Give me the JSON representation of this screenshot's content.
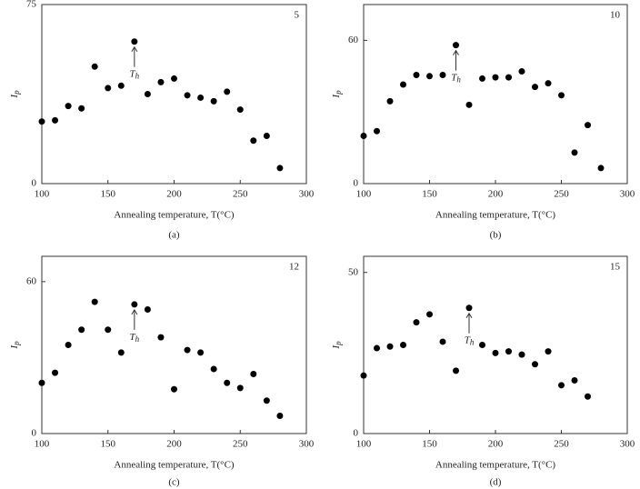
{
  "chart_data": [
    {
      "type": "scatter",
      "label": "5",
      "caption": "(a)",
      "xlabel": "Annealing temperature, T(°C)",
      "ylabel": {
        "main": "I",
        "sub": "p"
      },
      "annotation": {
        "main": "T",
        "sub": "h",
        "x": 170
      },
      "xlim": [
        100,
        300
      ],
      "xticks": [
        100,
        150,
        200,
        250,
        300
      ],
      "ylim": [
        0,
        75
      ],
      "yticks": [
        0,
        75
      ],
      "color": "#000000",
      "x": [
        100,
        110,
        120,
        130,
        140,
        150,
        160,
        170,
        180,
        190,
        200,
        210,
        220,
        230,
        240,
        250,
        260,
        270,
        280
      ],
      "values": [
        26,
        26.5,
        32.5,
        31.5,
        49,
        40,
        41,
        59.5,
        37.5,
        42.5,
        44,
        37,
        36,
        34.5,
        38.5,
        31,
        18,
        20,
        6.5
      ]
    },
    {
      "type": "scatter",
      "label": "10",
      "caption": "(b)",
      "xlabel": "Annealing temperature, T(°C)",
      "ylabel": {
        "main": "I",
        "sub": "p"
      },
      "annotation": {
        "main": "T",
        "sub": "h",
        "x": 170
      },
      "xlim": [
        100,
        300
      ],
      "xticks": [
        100,
        150,
        200,
        250,
        300
      ],
      "ylim": [
        0,
        75
      ],
      "yticks": [
        0,
        60
      ],
      "color": "#000000",
      "x": [
        100,
        110,
        120,
        130,
        140,
        150,
        160,
        170,
        180,
        190,
        200,
        210,
        220,
        230,
        240,
        250,
        260,
        270,
        280
      ],
      "values": [
        20,
        22,
        34.5,
        41.5,
        45.5,
        45,
        45.5,
        58,
        33,
        44,
        44.5,
        44.5,
        47,
        40.5,
        42,
        37,
        13,
        24.5,
        6.5
      ]
    },
    {
      "type": "scatter",
      "label": "12",
      "caption": "(c)",
      "xlabel": "Annealing temperature, T(°C)",
      "ylabel": {
        "main": "I",
        "sub": "p"
      },
      "annotation": {
        "main": "T",
        "sub": "h",
        "x": 170
      },
      "xlim": [
        100,
        300
      ],
      "xticks": [
        100,
        150,
        200,
        250,
        300
      ],
      "ylim": [
        0,
        70
      ],
      "yticks": [
        0,
        60
      ],
      "color": "#000000",
      "x": [
        100,
        110,
        120,
        130,
        140,
        150,
        160,
        170,
        180,
        190,
        200,
        210,
        220,
        230,
        240,
        250,
        260,
        270,
        280
      ],
      "values": [
        20,
        24,
        35,
        41,
        52,
        41,
        32,
        51,
        49,
        38,
        17.5,
        33,
        32,
        25.5,
        20,
        18,
        23.5,
        13,
        7
      ]
    },
    {
      "type": "scatter",
      "label": "15",
      "caption": "(d)",
      "xlabel": "Annealing temperature, T(°C)",
      "ylabel": {
        "main": "I",
        "sub": "p"
      },
      "annotation": {
        "main": "T",
        "sub": "h",
        "x": 180
      },
      "xlim": [
        100,
        300
      ],
      "xticks": [
        100,
        150,
        200,
        250,
        300
      ],
      "ylim": [
        0,
        55
      ],
      "yticks": [
        0,
        50
      ],
      "color": "#000000",
      "x": [
        100,
        110,
        120,
        130,
        140,
        150,
        160,
        170,
        180,
        190,
        200,
        210,
        220,
        230,
        240,
        250,
        260,
        270
      ],
      "values": [
        18,
        26.5,
        27,
        27.5,
        34.5,
        37,
        28.5,
        19.5,
        39,
        27.5,
        25,
        25.5,
        24.5,
        21.5,
        25.5,
        15,
        16.5,
        11.5
      ]
    }
  ]
}
